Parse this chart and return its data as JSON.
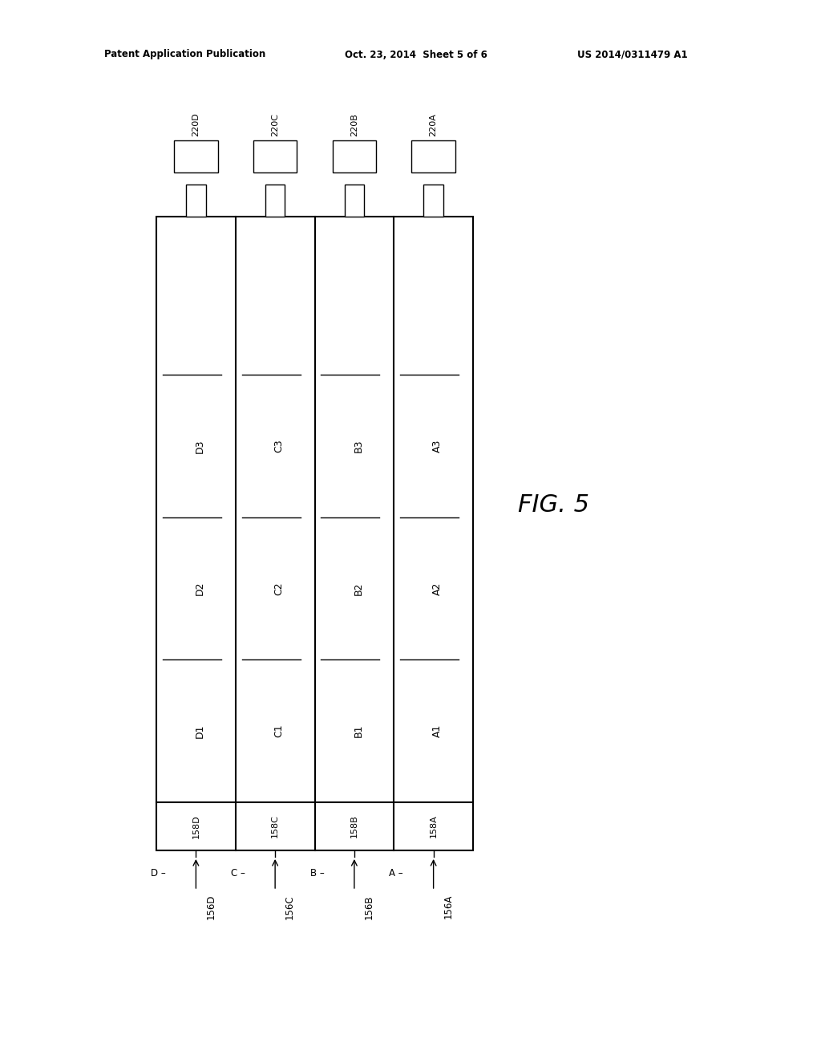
{
  "bg_color": "#ffffff",
  "header_text": "Patent Application Publication",
  "header_date": "Oct. 23, 2014  Sheet 5 of 6",
  "header_patent": "US 2014/0311479 A1",
  "fig_label": "FIG. 5",
  "col_labels_220": [
    "220D",
    "220C",
    "220B",
    "220A"
  ],
  "col_labels_158": [
    "158D",
    "158C",
    "158B",
    "158A"
  ],
  "col_labels_156": [
    "156D",
    "156C",
    "156B",
    "156A"
  ],
  "col_letters": [
    "D",
    "C",
    "B",
    "A"
  ],
  "cell_labels": [
    [
      "D3",
      "C3",
      "B3",
      "A3"
    ],
    [
      "D2",
      "C2",
      "B2",
      "A2"
    ],
    [
      "D1",
      "C1",
      "B1",
      "A1"
    ]
  ],
  "line_color": "#000000",
  "line_width": 1.0,
  "font_size_header": 8.5,
  "font_size_cell": 9,
  "font_size_fig": 22,
  "font_size_label": 8.5,
  "font_size_158": 8,
  "font_size_220": 8
}
